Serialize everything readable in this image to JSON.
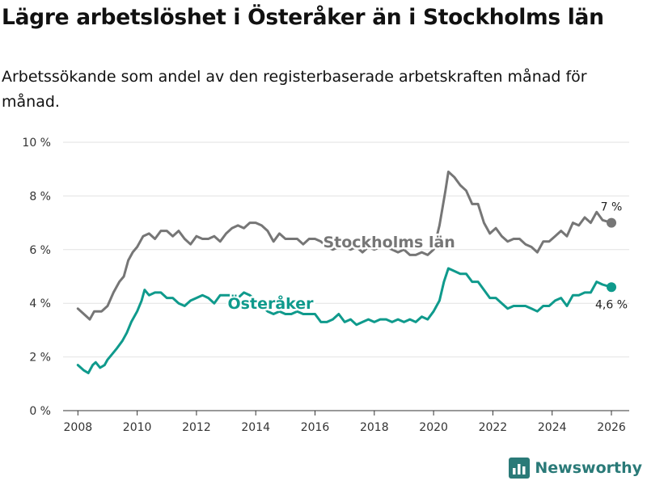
{
  "header": {
    "title": "Lägre arbetslöshet i Österåker än i Stockholms län",
    "subtitle": "Arbetssökande som andel av den registerbaserade arbetskraften månad för månad."
  },
  "brand": {
    "name": "Newsworthy"
  },
  "chart_data": {
    "type": "line",
    "title": "Lägre arbetslöshet i Österåker än i Stockholms län",
    "subtitle": "Arbetssökande som andel av den registerbaserade arbetskraften månad för månad.",
    "xlabel": "",
    "ylabel": "",
    "xlim": [
      2007.5,
      2026.6
    ],
    "ylim": [
      0,
      10
    ],
    "grid": true,
    "x_ticks": [
      2008,
      2010,
      2012,
      2014,
      2016,
      2018,
      2020,
      2022,
      2024,
      2026
    ],
    "x_tick_labels": [
      "2008",
      "2010",
      "2012",
      "2014",
      "2016",
      "2018",
      "2020",
      "2022",
      "2024",
      "2026"
    ],
    "y_ticks": [
      0,
      2,
      4,
      6,
      8,
      10
    ],
    "y_tick_labels": [
      "0 %",
      "2 %",
      "4 %",
      "6 %",
      "8 %",
      "10 %"
    ],
    "series": [
      {
        "name": "Stockholms län",
        "color": "#767676",
        "label_at": [
          2018.5,
          6.3
        ],
        "end_label": "7 %",
        "points": [
          [
            2008.0,
            3.8
          ],
          [
            2008.2,
            3.6
          ],
          [
            2008.4,
            3.4
          ],
          [
            2008.55,
            3.7
          ],
          [
            2008.8,
            3.7
          ],
          [
            2009.0,
            3.9
          ],
          [
            2009.2,
            4.4
          ],
          [
            2009.4,
            4.8
          ],
          [
            2009.55,
            5.0
          ],
          [
            2009.7,
            5.6
          ],
          [
            2009.85,
            5.9
          ],
          [
            2010.0,
            6.1
          ],
          [
            2010.2,
            6.5
          ],
          [
            2010.4,
            6.6
          ],
          [
            2010.6,
            6.4
          ],
          [
            2010.8,
            6.7
          ],
          [
            2011.0,
            6.7
          ],
          [
            2011.2,
            6.5
          ],
          [
            2011.4,
            6.7
          ],
          [
            2011.6,
            6.4
          ],
          [
            2011.8,
            6.2
          ],
          [
            2012.0,
            6.5
          ],
          [
            2012.2,
            6.4
          ],
          [
            2012.4,
            6.4
          ],
          [
            2012.6,
            6.5
          ],
          [
            2012.8,
            6.3
          ],
          [
            2013.0,
            6.6
          ],
          [
            2013.2,
            6.8
          ],
          [
            2013.4,
            6.9
          ],
          [
            2013.6,
            6.8
          ],
          [
            2013.8,
            7.0
          ],
          [
            2014.0,
            7.0
          ],
          [
            2014.2,
            6.9
          ],
          [
            2014.4,
            6.7
          ],
          [
            2014.6,
            6.3
          ],
          [
            2014.8,
            6.6
          ],
          [
            2015.0,
            6.4
          ],
          [
            2015.2,
            6.4
          ],
          [
            2015.4,
            6.4
          ],
          [
            2015.6,
            6.2
          ],
          [
            2015.8,
            6.4
          ],
          [
            2016.0,
            6.4
          ],
          [
            2016.2,
            6.3
          ],
          [
            2016.4,
            6.1
          ],
          [
            2016.6,
            6.0
          ],
          [
            2016.8,
            6.1
          ],
          [
            2017.0,
            6.1
          ],
          [
            2017.2,
            6.0
          ],
          [
            2017.4,
            6.1
          ],
          [
            2017.6,
            5.9
          ],
          [
            2017.8,
            6.1
          ],
          [
            2018.0,
            6.0
          ],
          [
            2018.2,
            6.1
          ],
          [
            2018.4,
            6.1
          ],
          [
            2018.6,
            6.0
          ],
          [
            2018.8,
            5.9
          ],
          [
            2019.0,
            6.0
          ],
          [
            2019.2,
            5.8
          ],
          [
            2019.4,
            5.8
          ],
          [
            2019.6,
            5.9
          ],
          [
            2019.8,
            5.8
          ],
          [
            2020.0,
            6.0
          ],
          [
            2020.2,
            6.9
          ],
          [
            2020.4,
            8.2
          ],
          [
            2020.5,
            8.9
          ],
          [
            2020.7,
            8.7
          ],
          [
            2020.9,
            8.4
          ],
          [
            2021.1,
            8.2
          ],
          [
            2021.3,
            7.7
          ],
          [
            2021.5,
            7.7
          ],
          [
            2021.7,
            7.0
          ],
          [
            2021.9,
            6.6
          ],
          [
            2022.1,
            6.8
          ],
          [
            2022.3,
            6.5
          ],
          [
            2022.5,
            6.3
          ],
          [
            2022.7,
            6.4
          ],
          [
            2022.9,
            6.4
          ],
          [
            2023.1,
            6.2
          ],
          [
            2023.3,
            6.1
          ],
          [
            2023.5,
            5.9
          ],
          [
            2023.7,
            6.3
          ],
          [
            2023.9,
            6.3
          ],
          [
            2024.1,
            6.5
          ],
          [
            2024.3,
            6.7
          ],
          [
            2024.5,
            6.5
          ],
          [
            2024.7,
            7.0
          ],
          [
            2024.9,
            6.9
          ],
          [
            2025.1,
            7.2
          ],
          [
            2025.3,
            7.0
          ],
          [
            2025.5,
            7.4
          ],
          [
            2025.7,
            7.1
          ],
          [
            2026.0,
            7.0
          ]
        ]
      },
      {
        "name": "Österåker",
        "color": "#0f9a8c",
        "label_at": [
          2014.5,
          4.0
        ],
        "end_label": "4,6 %",
        "points": [
          [
            2008.0,
            1.7
          ],
          [
            2008.2,
            1.5
          ],
          [
            2008.35,
            1.4
          ],
          [
            2008.5,
            1.7
          ],
          [
            2008.6,
            1.8
          ],
          [
            2008.75,
            1.6
          ],
          [
            2008.9,
            1.7
          ],
          [
            2009.0,
            1.9
          ],
          [
            2009.15,
            2.1
          ],
          [
            2009.3,
            2.3
          ],
          [
            2009.5,
            2.6
          ],
          [
            2009.65,
            2.9
          ],
          [
            2009.8,
            3.3
          ],
          [
            2010.0,
            3.7
          ],
          [
            2010.15,
            4.1
          ],
          [
            2010.25,
            4.5
          ],
          [
            2010.4,
            4.3
          ],
          [
            2010.6,
            4.4
          ],
          [
            2010.8,
            4.4
          ],
          [
            2011.0,
            4.2
          ],
          [
            2011.2,
            4.2
          ],
          [
            2011.4,
            4.0
          ],
          [
            2011.6,
            3.9
          ],
          [
            2011.8,
            4.1
          ],
          [
            2012.0,
            4.2
          ],
          [
            2012.2,
            4.3
          ],
          [
            2012.4,
            4.2
          ],
          [
            2012.6,
            4.0
          ],
          [
            2012.8,
            4.3
          ],
          [
            2013.0,
            4.3
          ],
          [
            2013.2,
            4.3
          ],
          [
            2013.4,
            4.2
          ],
          [
            2013.6,
            4.4
          ],
          [
            2013.8,
            4.3
          ],
          [
            2014.0,
            4.1
          ],
          [
            2014.2,
            3.9
          ],
          [
            2014.4,
            3.7
          ],
          [
            2014.6,
            3.6
          ],
          [
            2014.8,
            3.7
          ],
          [
            2015.0,
            3.6
          ],
          [
            2015.2,
            3.6
          ],
          [
            2015.4,
            3.7
          ],
          [
            2015.6,
            3.6
          ],
          [
            2015.8,
            3.6
          ],
          [
            2016.0,
            3.6
          ],
          [
            2016.2,
            3.3
          ],
          [
            2016.4,
            3.3
          ],
          [
            2016.6,
            3.4
          ],
          [
            2016.8,
            3.6
          ],
          [
            2017.0,
            3.3
          ],
          [
            2017.2,
            3.4
          ],
          [
            2017.4,
            3.2
          ],
          [
            2017.6,
            3.3
          ],
          [
            2017.8,
            3.4
          ],
          [
            2018.0,
            3.3
          ],
          [
            2018.2,
            3.4
          ],
          [
            2018.4,
            3.4
          ],
          [
            2018.6,
            3.3
          ],
          [
            2018.8,
            3.4
          ],
          [
            2019.0,
            3.3
          ],
          [
            2019.2,
            3.4
          ],
          [
            2019.4,
            3.3
          ],
          [
            2019.6,
            3.5
          ],
          [
            2019.8,
            3.4
          ],
          [
            2020.0,
            3.7
          ],
          [
            2020.2,
            4.1
          ],
          [
            2020.35,
            4.8
          ],
          [
            2020.5,
            5.3
          ],
          [
            2020.7,
            5.2
          ],
          [
            2020.9,
            5.1
          ],
          [
            2021.1,
            5.1
          ],
          [
            2021.3,
            4.8
          ],
          [
            2021.5,
            4.8
          ],
          [
            2021.7,
            4.5
          ],
          [
            2021.9,
            4.2
          ],
          [
            2022.1,
            4.2
          ],
          [
            2022.3,
            4.0
          ],
          [
            2022.5,
            3.8
          ],
          [
            2022.7,
            3.9
          ],
          [
            2022.9,
            3.9
          ],
          [
            2023.1,
            3.9
          ],
          [
            2023.3,
            3.8
          ],
          [
            2023.5,
            3.7
          ],
          [
            2023.7,
            3.9
          ],
          [
            2023.9,
            3.9
          ],
          [
            2024.1,
            4.1
          ],
          [
            2024.3,
            4.2
          ],
          [
            2024.5,
            3.9
          ],
          [
            2024.7,
            4.3
          ],
          [
            2024.9,
            4.3
          ],
          [
            2025.1,
            4.4
          ],
          [
            2025.3,
            4.4
          ],
          [
            2025.5,
            4.8
          ],
          [
            2025.7,
            4.7
          ],
          [
            2026.0,
            4.6
          ]
        ]
      }
    ]
  }
}
